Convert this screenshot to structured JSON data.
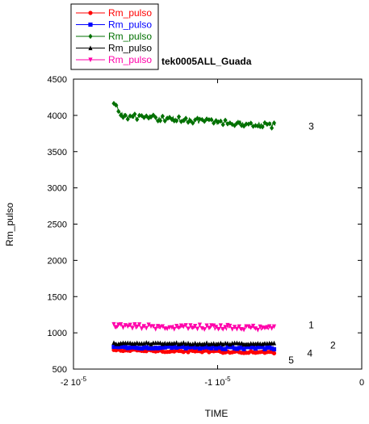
{
  "chart_data": {
    "type": "line",
    "title": "tek0005ALL_Guada",
    "xlabel": "TIME",
    "ylabel": "Rm_pulso",
    "xlim": [
      -2e-05,
      0
    ],
    "ylim": [
      500,
      4500
    ],
    "x_ticks": [
      {
        "value": -2e-05,
        "label": "-2 10",
        "exp": "-5"
      },
      {
        "value": -1e-05,
        "label": "-1 10",
        "exp": "-5"
      },
      {
        "value": 0,
        "label": "0",
        "exp": ""
      }
    ],
    "y_ticks": [
      500,
      1000,
      1500,
      2000,
      2500,
      3000,
      3500,
      4000,
      4500
    ],
    "grid": false,
    "legend_position": "top-left, outside plot",
    "x_range_data": [
      -1.72e-05,
      -6e-06
    ],
    "series": [
      {
        "name": "Rm_pulso",
        "color": "#ff0000",
        "marker": "circle",
        "level_start": 760,
        "level_end": 730,
        "noise": 15
      },
      {
        "name": "Rm_pulso",
        "color": "#0000ff",
        "marker": "square",
        "level_start": 800,
        "level_end": 790,
        "noise": 18
      },
      {
        "name": "Rm_pulso",
        "color": "#007000",
        "marker": "diamond",
        "level_start": 4000,
        "level_end": 3860,
        "noise": 40
      },
      {
        "name": "Rm_pulso",
        "color": "#000000",
        "marker": "triangle-up",
        "level_start": 855,
        "level_end": 850,
        "noise": 12
      },
      {
        "name": "Rm_pulso",
        "color": "#ff00aa",
        "marker": "triangle-down",
        "level_start": 1090,
        "level_end": 1070,
        "noise": 35
      }
    ],
    "annotations": [
      {
        "text": "3",
        "x": -3.5e-06,
        "y": 3850
      },
      {
        "text": "1",
        "x": -3.5e-06,
        "y": 1110
      },
      {
        "text": "2",
        "x": -2e-06,
        "y": 830
      },
      {
        "text": "4",
        "x": -3.6e-06,
        "y": 720
      },
      {
        "text": "5",
        "x": -4.9e-06,
        "y": 620
      }
    ]
  }
}
